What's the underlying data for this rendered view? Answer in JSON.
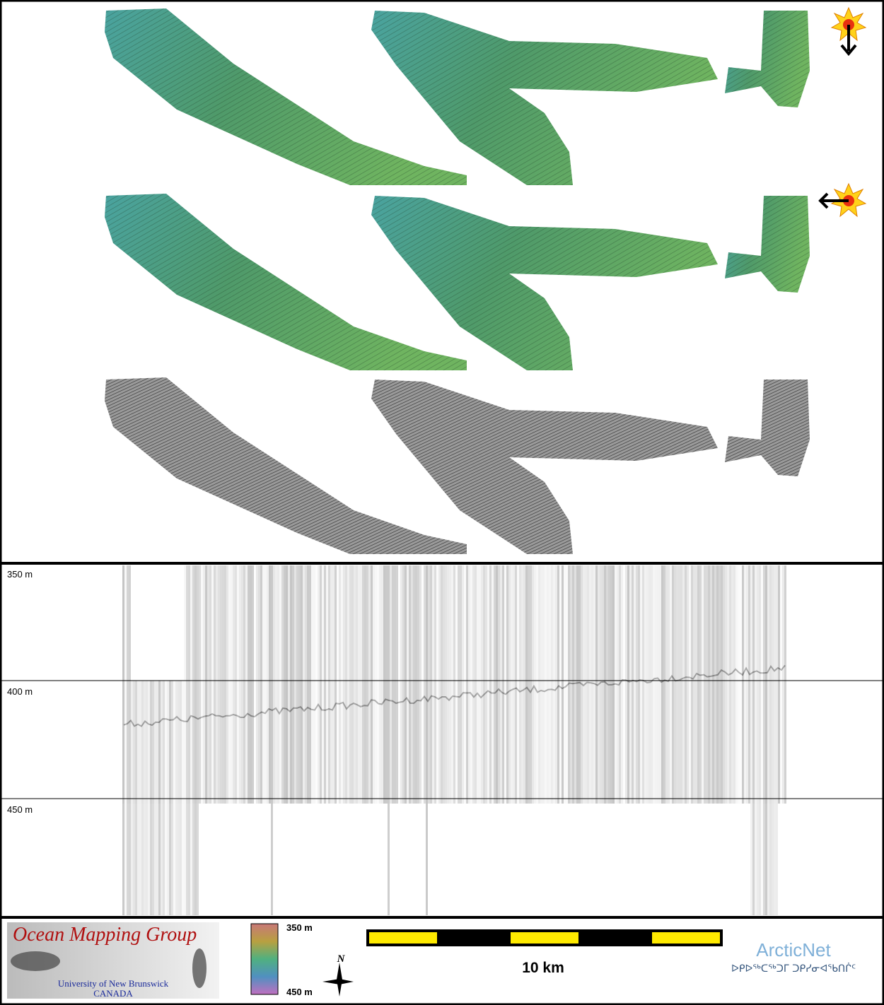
{
  "water_column": {
    "depth_labels": [
      "350 m",
      "400 m",
      "450 m"
    ]
  },
  "legend": {
    "logo": {
      "title": "Ocean Mapping Group",
      "subtitle": "University of New Brunswick",
      "country": "CANADA"
    },
    "colorbar": {
      "top_label": "350 m",
      "bottom_label": "450 m"
    },
    "north_label": "N",
    "scale_label": "10 km",
    "partner": {
      "name": "ArcticNet",
      "syllabics": "ᐅᑭᐅᖅᑕᖅᑐᒥ ᑐᑭᓯᓂᐊᖃᑎᒌᑦ"
    }
  }
}
